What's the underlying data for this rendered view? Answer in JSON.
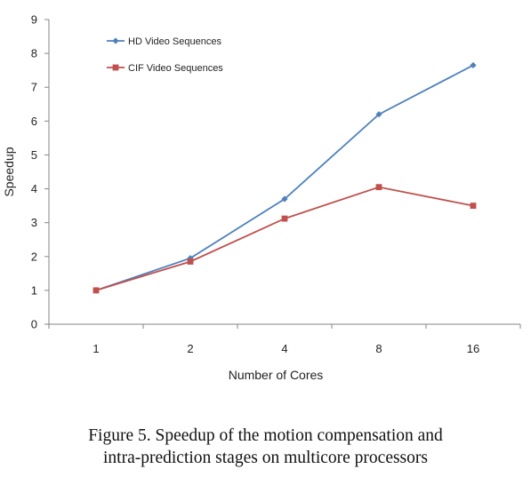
{
  "chart_data": {
    "type": "line",
    "title": "",
    "xlabel": "Number of Cores",
    "ylabel": "Speedup",
    "categories": [
      "1",
      "2",
      "4",
      "8",
      "16"
    ],
    "ylim": [
      0,
      9
    ],
    "yticks": [
      "0",
      "1",
      "2",
      "3",
      "4",
      "5",
      "6",
      "7",
      "8",
      "9"
    ],
    "grid": false,
    "legend_position": "top-left",
    "series": [
      {
        "name": "HD Video Sequences",
        "values": [
          1.0,
          1.95,
          3.7,
          6.2,
          7.65
        ],
        "color": "#4f81bd",
        "marker": "diamond"
      },
      {
        "name": "CIF Video Sequences",
        "values": [
          1.0,
          1.85,
          3.12,
          4.05,
          3.5
        ],
        "color": "#c0504d",
        "marker": "square"
      }
    ]
  },
  "caption": {
    "line1": "Figure 5. Speedup of the motion compensation and",
    "line2": "intra-prediction stages on multicore processors"
  }
}
